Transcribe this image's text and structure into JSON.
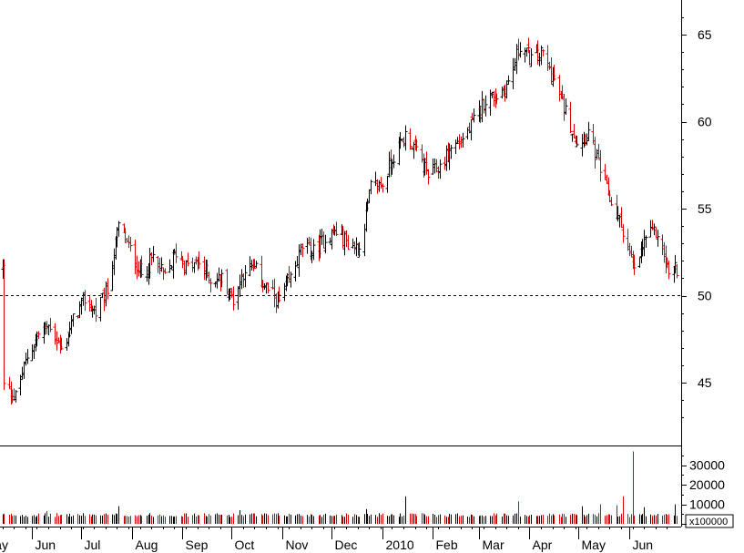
{
  "colors": {
    "up": "#000000",
    "down": "#dd0000",
    "axis": "#000000",
    "background": "#ffffff"
  },
  "chart_data": {
    "type": "ohlc",
    "price": {
      "yaxis_ticks": [
        45,
        50,
        55,
        60,
        65
      ],
      "ylim": [
        43,
        66.5
      ],
      "reference_line": 50,
      "reference_style": "dashed",
      "anchors": [
        [
          "2009-05-15",
          44.8
        ],
        [
          "2009-05-22",
          44.2
        ],
        [
          "2009-05-29",
          46.5
        ],
        [
          "2009-06-05",
          47.8
        ],
        [
          "2009-06-12",
          48.3
        ],
        [
          "2009-06-19",
          46.8
        ],
        [
          "2009-06-26",
          48.6
        ],
        [
          "2009-07-03",
          49.8
        ],
        [
          "2009-07-10",
          49.0
        ],
        [
          "2009-07-17",
          50.3
        ],
        [
          "2009-07-21",
          52.5
        ],
        [
          "2009-07-24",
          54.0
        ],
        [
          "2009-07-31",
          52.6
        ],
        [
          "2009-08-07",
          51.2
        ],
        [
          "2009-08-14",
          52.2
        ],
        [
          "2009-08-21",
          51.0
        ],
        [
          "2009-08-28",
          52.5
        ],
        [
          "2009-09-04",
          51.6
        ],
        [
          "2009-09-11",
          51.9
        ],
        [
          "2009-09-18",
          50.9
        ],
        [
          "2009-09-25",
          51.0
        ],
        [
          "2009-10-02",
          49.8
        ],
        [
          "2009-10-09",
          51.6
        ],
        [
          "2009-10-16",
          51.4
        ],
        [
          "2009-10-23",
          50.3
        ],
        [
          "2009-10-30",
          49.6
        ],
        [
          "2009-11-06",
          51.0
        ],
        [
          "2009-11-13",
          52.8
        ],
        [
          "2009-11-20",
          52.5
        ],
        [
          "2009-11-27",
          53.3
        ],
        [
          "2009-12-04",
          53.7
        ],
        [
          "2009-12-11",
          53.0
        ],
        [
          "2009-12-18",
          52.7
        ],
        [
          "2009-12-25",
          56.2
        ],
        [
          "2010-01-01",
          56.4
        ],
        [
          "2010-01-08",
          58.1
        ],
        [
          "2010-01-15",
          59.2
        ],
        [
          "2010-01-22",
          58.3
        ],
        [
          "2010-01-29",
          56.9
        ],
        [
          "2010-02-05",
          57.4
        ],
        [
          "2010-02-12",
          58.5
        ],
        [
          "2010-02-19",
          59.0
        ],
        [
          "2010-02-26",
          60.0
        ],
        [
          "2010-03-05",
          61.3
        ],
        [
          "2010-03-12",
          61.5
        ],
        [
          "2010-03-19",
          62.2
        ],
        [
          "2010-03-26",
          64.4
        ],
        [
          "2010-04-02",
          63.6
        ],
        [
          "2010-04-09",
          63.9
        ],
        [
          "2010-04-16",
          62.3
        ],
        [
          "2010-04-23",
          60.6
        ],
        [
          "2010-04-30",
          58.8
        ],
        [
          "2010-05-07",
          59.4
        ],
        [
          "2010-05-14",
          57.2
        ],
        [
          "2010-05-21",
          55.3
        ],
        [
          "2010-05-28",
          53.8
        ],
        [
          "2010-06-04",
          51.3
        ],
        [
          "2010-06-11",
          53.4
        ],
        [
          "2010-06-18",
          53.6
        ],
        [
          "2010-06-25",
          51.3
        ],
        [
          "2010-06-30",
          51.6
        ]
      ]
    },
    "volume": {
      "yaxis_ticks": [
        10000,
        20000,
        30000
      ],
      "ylim": [
        0,
        40000
      ],
      "multiplier_label": "x100000",
      "baseline": 3500,
      "spikes": [
        [
          "2009-06-10",
          6500
        ],
        [
          "2009-07-24",
          9000
        ],
        [
          "2009-10-06",
          7000
        ],
        [
          "2009-12-22",
          7500
        ],
        [
          "2010-01-15",
          14000
        ],
        [
          "2010-03-25",
          11500
        ],
        [
          "2010-05-03",
          9000
        ],
        [
          "2010-05-14",
          10000
        ],
        [
          "2010-05-24",
          9500
        ],
        [
          "2010-05-28",
          14000
        ],
        [
          "2010-06-03",
          37000
        ],
        [
          "2010-06-10",
          8500
        ],
        [
          "2010-06-29",
          10000
        ]
      ]
    },
    "date_range": [
      "2009-05-14",
      "2010-06-30"
    ],
    "xaxis_ticks": [
      {
        "date": "2009-05-01",
        "label": "May"
      },
      {
        "date": "2009-06-01",
        "label": "Jun"
      },
      {
        "date": "2009-07-01",
        "label": "Jul"
      },
      {
        "date": "2009-08-01",
        "label": "Aug"
      },
      {
        "date": "2009-09-01",
        "label": "Sep"
      },
      {
        "date": "2009-10-01",
        "label": "Oct"
      },
      {
        "date": "2009-11-01",
        "label": "Nov"
      },
      {
        "date": "2009-12-01",
        "label": "Dec"
      },
      {
        "date": "2010-01-01",
        "label": "2010"
      },
      {
        "date": "2010-02-01",
        "label": "Feb"
      },
      {
        "date": "2010-03-01",
        "label": "Mar"
      },
      {
        "date": "2010-04-01",
        "label": "Apr"
      },
      {
        "date": "2010-05-01",
        "label": "May"
      },
      {
        "date": "2010-06-01",
        "label": "Jun"
      }
    ],
    "grid": false
  }
}
